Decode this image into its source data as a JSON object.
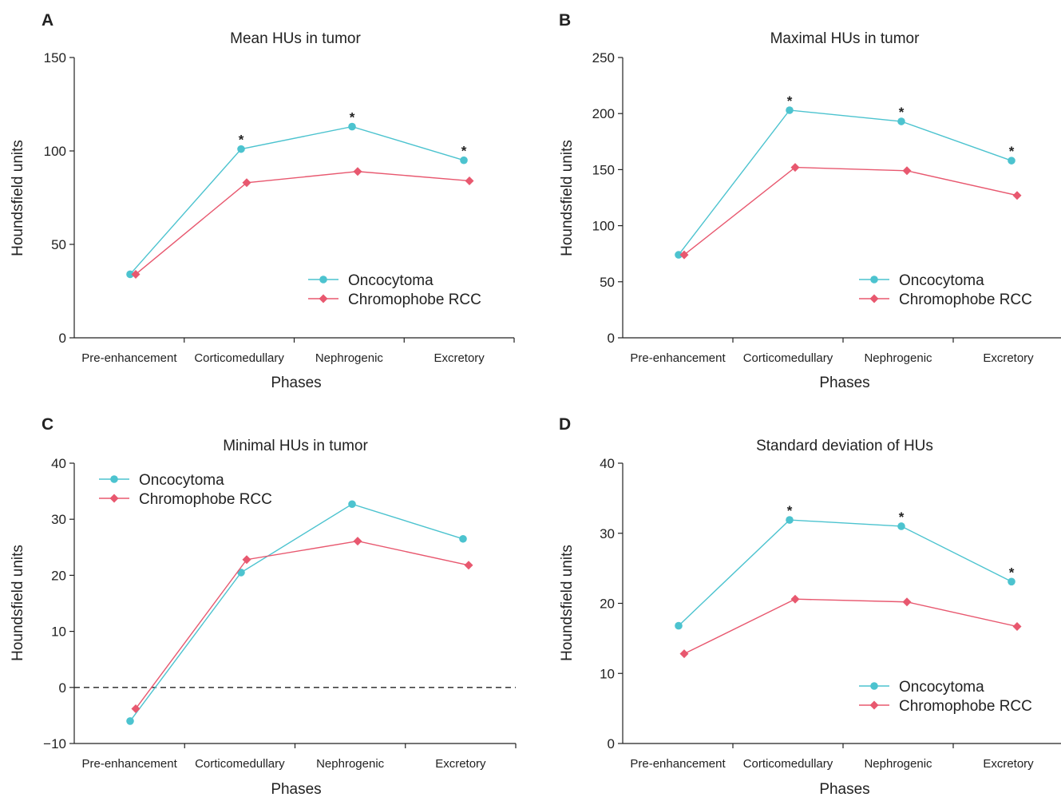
{
  "colors": {
    "oncocytoma": "#4cc3cf",
    "chromophobe": "#e8586f",
    "axis": "#222222"
  },
  "chart_data": [
    {
      "panel": "A",
      "type": "line",
      "title": "Mean HUs in tumor",
      "xlabel": "Phases",
      "ylabel": "Houndsfield units",
      "categories": [
        "Pre-enhancement",
        "Corticomedullary",
        "Nephrogenic",
        "Excretory"
      ],
      "ylim": [
        0,
        150
      ],
      "yticks": [
        0,
        50,
        100,
        150
      ],
      "legend_position": "bottom-right",
      "series": [
        {
          "name": "Oncocytoma",
          "marker": "circle",
          "values": [
            34,
            101,
            113,
            95
          ]
        },
        {
          "name": "Chromophobe RCC",
          "marker": "diamond",
          "values": [
            34,
            83,
            89,
            84
          ]
        }
      ],
      "annotations": [
        {
          "category": "Corticomedullary",
          "text": "*"
        },
        {
          "category": "Nephrogenic",
          "text": "*"
        },
        {
          "category": "Excretory",
          "text": "*"
        }
      ]
    },
    {
      "panel": "B",
      "type": "line",
      "title": "Maximal HUs in tumor",
      "xlabel": "Phases",
      "ylabel": "Houndsfield units",
      "categories": [
        "Pre-enhancement",
        "Corticomedullary",
        "Nephrogenic",
        "Excretory"
      ],
      "ylim": [
        0,
        250
      ],
      "yticks": [
        0,
        50,
        100,
        150,
        200,
        250
      ],
      "legend_position": "bottom-right",
      "series": [
        {
          "name": "Oncocytoma",
          "marker": "circle",
          "values": [
            74,
            203,
            193,
            158
          ]
        },
        {
          "name": "Chromophobe RCC",
          "marker": "diamond",
          "values": [
            74,
            152,
            149,
            127
          ]
        }
      ],
      "annotations": [
        {
          "category": "Corticomedullary",
          "text": "*"
        },
        {
          "category": "Nephrogenic",
          "text": "*"
        },
        {
          "category": "Excretory",
          "text": "*"
        }
      ]
    },
    {
      "panel": "C",
      "type": "line",
      "title": "Minimal HUs in tumor",
      "xlabel": "Phases",
      "ylabel": "Houndsfield units",
      "categories": [
        "Pre-enhancement",
        "Corticomedullary",
        "Nephrogenic",
        "Excretory"
      ],
      "ylim": [
        -10,
        40
      ],
      "yticks": [
        -10,
        0,
        10,
        20,
        30,
        40
      ],
      "ytick_labels": [
        "−10",
        "0",
        "10",
        "20",
        "30",
        "40"
      ],
      "reference_line": 0,
      "legend_position": "top-left",
      "series": [
        {
          "name": "Oncocytoma",
          "marker": "circle",
          "values": [
            -6,
            20.5,
            32.7,
            26.5
          ]
        },
        {
          "name": "Chromophobe RCC",
          "marker": "diamond",
          "values": [
            -3.8,
            22.8,
            26.1,
            21.8
          ]
        }
      ],
      "annotations": []
    },
    {
      "panel": "D",
      "type": "line",
      "title": "Standard deviation of HUs",
      "xlabel": "Phases",
      "ylabel": "Houndsfield units",
      "categories": [
        "Pre-enhancement",
        "Corticomedullary",
        "Nephrogenic",
        "Excretory"
      ],
      "ylim": [
        0,
        40
      ],
      "yticks": [
        0,
        10,
        20,
        30,
        40
      ],
      "legend_position": "bottom-right",
      "series": [
        {
          "name": "Oncocytoma",
          "marker": "circle",
          "values": [
            16.8,
            31.9,
            31.0,
            23.1
          ]
        },
        {
          "name": "Chromophobe RCC",
          "marker": "diamond",
          "values": [
            12.8,
            20.6,
            20.2,
            16.7
          ]
        }
      ],
      "annotations": [
        {
          "category": "Corticomedullary",
          "text": "*"
        },
        {
          "category": "Nephrogenic",
          "text": "*"
        },
        {
          "category": "Excretory",
          "text": "*"
        }
      ]
    }
  ]
}
